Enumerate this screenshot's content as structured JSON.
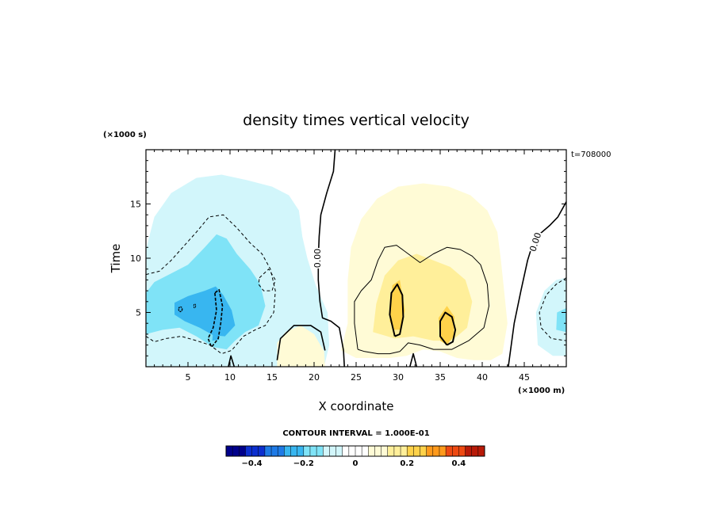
{
  "chart_data": {
    "type": "heatmap",
    "title": "density times vertical velocity",
    "xlabel": "X coordinate",
    "ylabel": "Time",
    "x_unit": "(×1000 m)",
    "y_unit": "(×1000 s)",
    "xlim": [
      0,
      50
    ],
    "ylim": [
      0,
      20
    ],
    "x_ticks": [
      5,
      10,
      15,
      20,
      25,
      30,
      35,
      40,
      45
    ],
    "y_ticks": [
      5,
      10,
      15
    ],
    "time_annotation": "t=708000",
    "contour_interval_text": "CONTOUR INTERVAL = 1.000E-01",
    "contour_interval": 0.1,
    "zero_contour_label": "0.00",
    "colorbar": {
      "range": [
        -0.5,
        0.5
      ],
      "levels": 40,
      "tick_values": [
        -0.4,
        -0.2,
        0,
        0.2,
        0.4
      ],
      "tick_labels": [
        "−0.4",
        "−0.2",
        "0",
        "0.2",
        "0.4"
      ],
      "colors": [
        "#00008b",
        "#0c2fcf",
        "#1e7ae6",
        "#38b6f0",
        "#7fe3f7",
        "#d2f6fb",
        "#ffffff",
        "#fffbd6",
        "#ffef9a",
        "#ffd24a",
        "#ff9a1c",
        "#ee4a12",
        "#b81a08"
      ]
    },
    "features": [
      {
        "sign": "negative",
        "x": [
          0,
          22
        ],
        "t": [
          0,
          16
        ],
        "min_value": -0.24
      },
      {
        "sign": "negative",
        "x": [
          46,
          50
        ],
        "t": [
          1,
          8
        ],
        "min_value": -0.12
      },
      {
        "sign": "positive",
        "x": [
          23,
          43
        ],
        "t": [
          1,
          17
        ],
        "max_value": 0.24
      },
      {
        "sign": "positive",
        "x": [
          15,
          21
        ],
        "t": [
          0,
          4
        ],
        "max_value": 0.06
      }
    ]
  }
}
